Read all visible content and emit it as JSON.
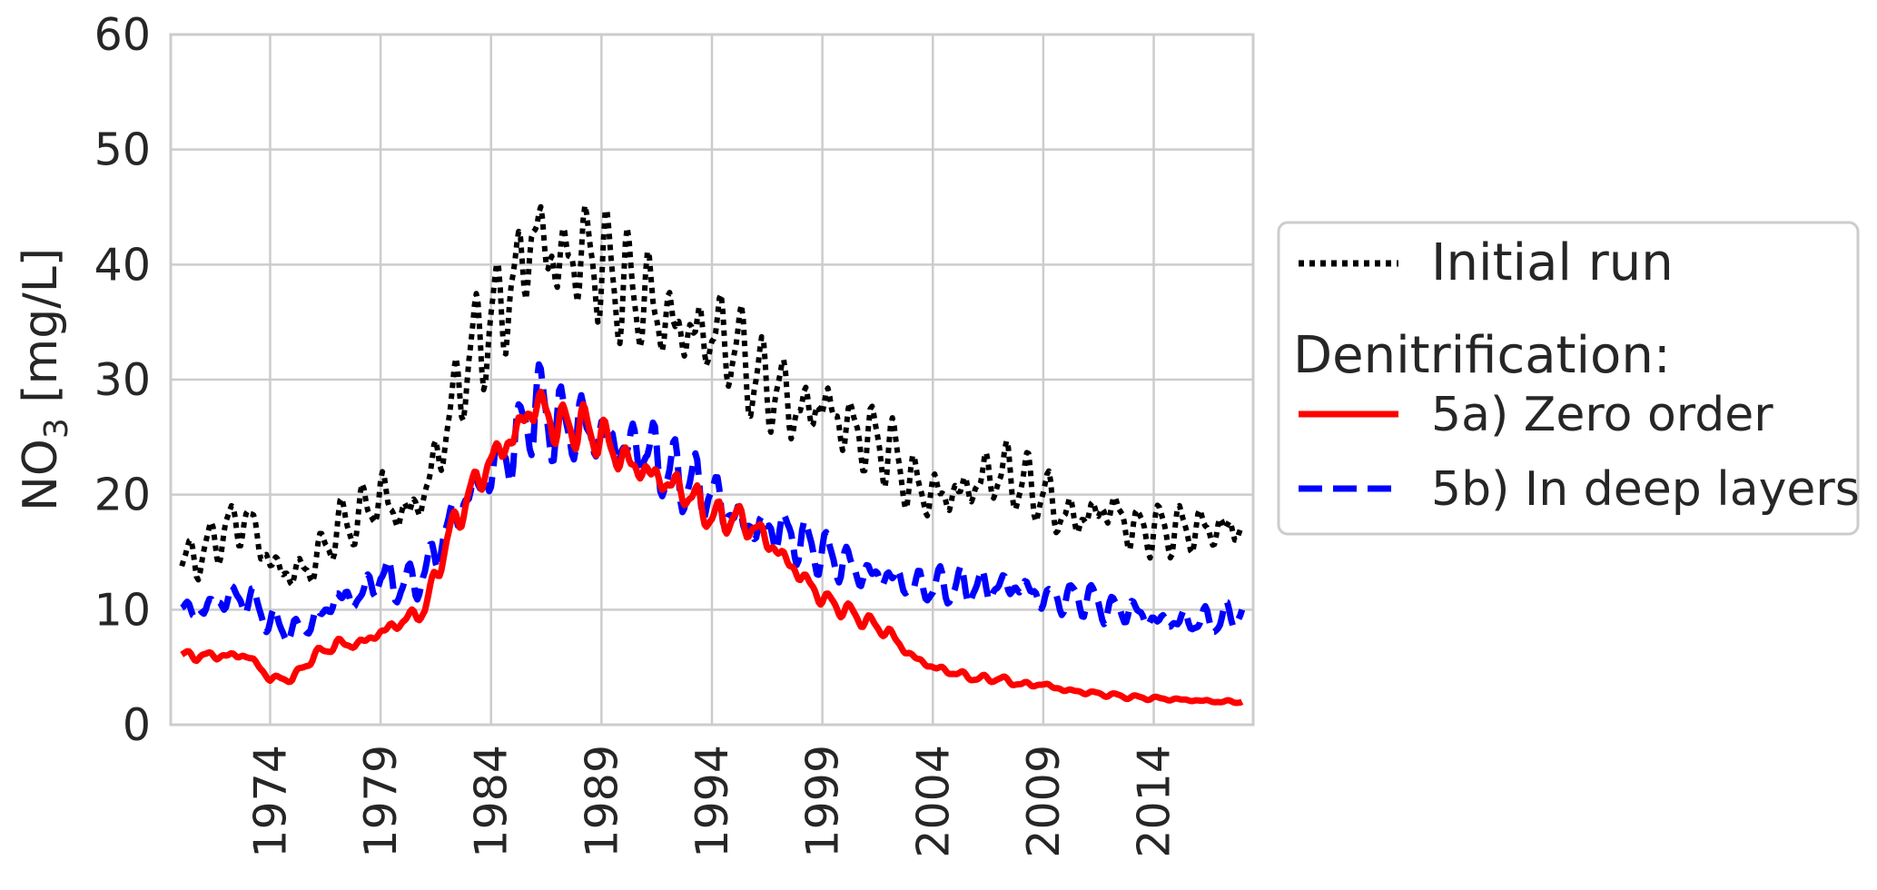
{
  "chart_data": {
    "type": "line",
    "title": "",
    "xlabel": "",
    "ylabel": "NO",
    "ylabel_subscript": "3",
    "ylabel_unit": " [mg/L]",
    "xlim": [
      1969.5,
      2018.5
    ],
    "ylim": [
      0,
      60
    ],
    "yticks": [
      0,
      10,
      20,
      30,
      40,
      50,
      60
    ],
    "xticks": [
      1974,
      1979,
      1984,
      1989,
      1994,
      1999,
      2004,
      2009,
      2014
    ],
    "grid": true,
    "legend": {
      "placement": "right-outside",
      "group_title": "Denitrification:"
    },
    "x": [
      1970,
      1971,
      1972,
      1973,
      1974,
      1975,
      1976,
      1977,
      1978,
      1979,
      1980,
      1981,
      1982,
      1983,
      1984,
      1985,
      1986,
      1987,
      1988,
      1989,
      1990,
      1991,
      1992,
      1993,
      1994,
      1995,
      1996,
      1997,
      1998,
      1999,
      2000,
      2001,
      2002,
      2003,
      2004,
      2005,
      2006,
      2007,
      2008,
      2009,
      2010,
      2011,
      2012,
      2013,
      2014,
      2015,
      2016,
      2017,
      2018
    ],
    "series": [
      {
        "name": "Initial run",
        "style": "dotted",
        "color": "#000000",
        "values": [
          14,
          15,
          17,
          18,
          14,
          13,
          14,
          17,
          18,
          20,
          18,
          20,
          26,
          32,
          35,
          38,
          43,
          40,
          41,
          40,
          38,
          37,
          35,
          34,
          34,
          33,
          30,
          29,
          27,
          28,
          26,
          25,
          24,
          21,
          20,
          20,
          21,
          22,
          21,
          20,
          18,
          18,
          19,
          17,
          17,
          17,
          17,
          17,
          17
        ]
      },
      {
        "name": "5a) Zero order",
        "style": "solid",
        "color": "#ff0000",
        "values": [
          6,
          6,
          6,
          6,
          4,
          4,
          6,
          7,
          7,
          8,
          9,
          10,
          16,
          20,
          23,
          25,
          28,
          26,
          26,
          25,
          23,
          22,
          21,
          20,
          18,
          18,
          17,
          15,
          13,
          11,
          10,
          9,
          8,
          6,
          5,
          4.5,
          4,
          4,
          3.5,
          3.5,
          3,
          2.8,
          2.6,
          2.4,
          2.3,
          2.2,
          2.1,
          2,
          2
        ]
      },
      {
        "name": "5b) In deep layers",
        "style": "dashed",
        "color": "#0000ff",
        "values": [
          10,
          10,
          11,
          11,
          9,
          8,
          9,
          11,
          11,
          13,
          12,
          13,
          17,
          20,
          22,
          24,
          28,
          26,
          26,
          25,
          24,
          24,
          22,
          21,
          20,
          18,
          17,
          17,
          16,
          15,
          14,
          13,
          13,
          12,
          12,
          12,
          12,
          12,
          12,
          11,
          11,
          11,
          10,
          10,
          9,
          9,
          9,
          9,
          10
        ]
      }
    ]
  }
}
